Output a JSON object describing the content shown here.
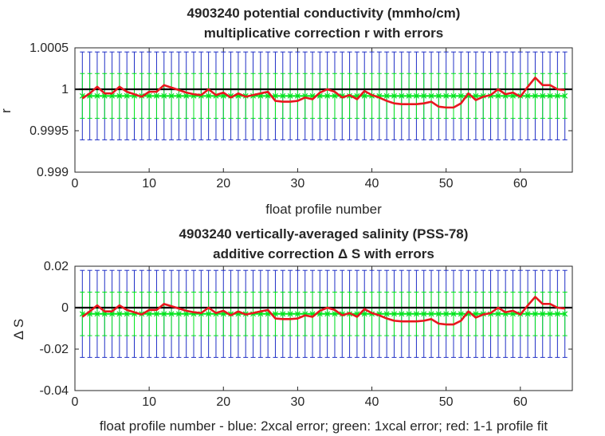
{
  "chart_data": [
    {
      "type": "line",
      "title": "4903240 potential conductivity (mmho/cm)",
      "subtitle": "multiplicative correction r with errors",
      "xlabel": "float profile number",
      "ylabel": "r",
      "xlim": [
        0,
        67
      ],
      "ylim": [
        0.999,
        1.0005
      ],
      "xticks": [
        0,
        10,
        20,
        30,
        40,
        50,
        60
      ],
      "yticks": [
        0.999,
        0.9995,
        1,
        1.0005
      ],
      "ytick_labels": [
        "0.999",
        "0.9995",
        "1",
        "1.0005"
      ],
      "reference_line": 1,
      "x": [
        1,
        2,
        3,
        4,
        5,
        6,
        7,
        8,
        9,
        10,
        11,
        12,
        13,
        14,
        15,
        16,
        17,
        18,
        19,
        20,
        21,
        22,
        23,
        24,
        25,
        26,
        27,
        28,
        29,
        30,
        31,
        32,
        33,
        34,
        35,
        36,
        37,
        38,
        39,
        40,
        41,
        42,
        43,
        44,
        45,
        46,
        47,
        48,
        49,
        50,
        51,
        52,
        53,
        54,
        55,
        56,
        57,
        58,
        59,
        60,
        61,
        62,
        63,
        64,
        65,
        66
      ],
      "series": [
        {
          "role": "fit",
          "color": "#e8171e",
          "values": [
            0.99989,
            0.99995,
            1.00003,
            0.99995,
            0.99995,
            1.00003,
            0.99997,
            0.99994,
            0.99991,
            0.99997,
            0.99997,
            1.00005,
            1.00002,
            0.99999,
            0.99996,
            0.99994,
            0.99993,
            1.0,
            0.99993,
            0.99996,
            0.9999,
            0.99995,
            0.99991,
            0.99993,
            0.99995,
            0.99997,
            0.99986,
            0.99985,
            0.99985,
            0.99986,
            0.9999,
            0.99988,
            0.99996,
            1.0,
            0.99997,
            0.9999,
            0.99993,
            0.99988,
            0.99998,
            0.99993,
            0.9999,
            0.99986,
            0.99983,
            0.99982,
            0.99982,
            0.99982,
            0.99983,
            0.99985,
            0.99979,
            0.99978,
            0.99978,
            0.99983,
            0.99995,
            0.99987,
            0.99991,
            0.99993,
            1.0,
            0.99994,
            0.99996,
            0.99991,
            1.00003,
            1.00014,
            1.00005,
            1.00005,
            1.0,
            0.99999
          ]
        },
        {
          "role": "mapped value",
          "color": "#00e51c",
          "value": 0.99992
        },
        {
          "role": "1xcal error",
          "color": "#00e51c",
          "half_width": 0.00027
        },
        {
          "role": "2xcal error",
          "color": "#1f2fc6",
          "half_width": 0.00053
        }
      ]
    },
    {
      "type": "line",
      "title": "4903240 vertically-averaged salinity (PSS-78)",
      "subtitle": "additive correction Δ S with errors",
      "xlabel": "float profile number - blue: 2xcal error; green: 1xcal error; red: 1-1 profile fit",
      "ylabel": "Δ S",
      "xlim": [
        0,
        67
      ],
      "ylim": [
        -0.04,
        0.02
      ],
      "xticks": [
        0,
        10,
        20,
        30,
        40,
        50,
        60
      ],
      "yticks": [
        -0.04,
        -0.02,
        0,
        0.02
      ],
      "ytick_labels": [
        "-0.04",
        "-0.02",
        "0",
        "0.02"
      ],
      "reference_line": 0,
      "x": [
        1,
        2,
        3,
        4,
        5,
        6,
        7,
        8,
        9,
        10,
        11,
        12,
        13,
        14,
        15,
        16,
        17,
        18,
        19,
        20,
        21,
        22,
        23,
        24,
        25,
        26,
        27,
        28,
        29,
        30,
        31,
        32,
        33,
        34,
        35,
        36,
        37,
        38,
        39,
        40,
        41,
        42,
        43,
        44,
        45,
        46,
        47,
        48,
        49,
        50,
        51,
        52,
        53,
        54,
        55,
        56,
        57,
        58,
        59,
        60,
        61,
        62,
        63,
        64,
        65,
        66
      ],
      "series": [
        {
          "role": "fit",
          "color": "#e8171e",
          "values": [
            -0.0044,
            -0.0018,
            0.0011,
            -0.0018,
            -0.0018,
            0.0011,
            -0.0011,
            -0.0022,
            -0.0033,
            -0.0011,
            -0.0011,
            0.0018,
            0.0007,
            -0.0004,
            -0.0015,
            -0.0022,
            -0.0026,
            0.0,
            -0.0026,
            -0.0015,
            -0.0037,
            -0.0018,
            -0.0033,
            -0.0026,
            -0.0018,
            -0.0011,
            -0.0052,
            -0.0055,
            -0.0055,
            -0.0052,
            -0.0037,
            -0.0044,
            -0.0015,
            0.0,
            -0.0011,
            -0.0037,
            -0.0026,
            -0.0044,
            -0.0007,
            -0.0026,
            -0.0037,
            -0.0052,
            -0.0063,
            -0.0066,
            -0.0066,
            -0.0066,
            -0.0063,
            -0.0055,
            -0.0077,
            -0.0081,
            -0.0081,
            -0.0063,
            -0.0018,
            -0.0048,
            -0.0033,
            -0.0026,
            0.0,
            -0.0022,
            -0.0015,
            -0.0033,
            0.0011,
            0.0052,
            0.0018,
            0.0018,
            0.0,
            -0.0004
          ]
        },
        {
          "role": "mapped value",
          "color": "#00e51c",
          "value": -0.003
        },
        {
          "role": "1xcal error",
          "color": "#00e51c",
          "half_width": 0.0105
        },
        {
          "role": "2xcal error",
          "color": "#1f2fc6",
          "half_width": 0.021
        }
      ]
    }
  ]
}
